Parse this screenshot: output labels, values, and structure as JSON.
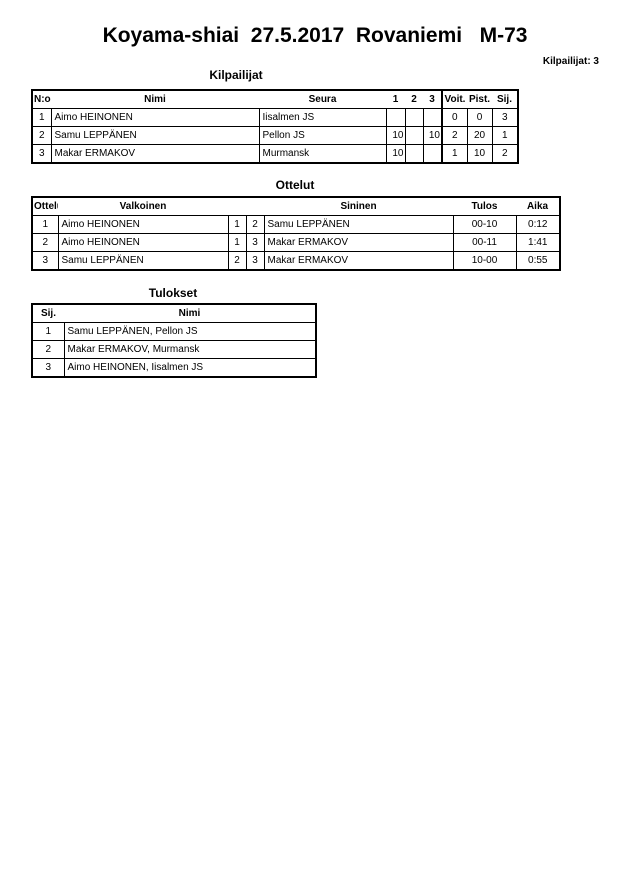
{
  "title": "Koyama-shiai  27.5.2017  Rovaniemi   M-73",
  "competitor_count": "Kilpailijat: 3",
  "competitors": {
    "title": "Kilpailijat",
    "headers": [
      "N:o",
      "Nimi",
      "Seura",
      "1",
      "2",
      "3",
      "Voit.",
      "Pist.",
      "Sij."
    ],
    "rows": [
      [
        "1",
        "Aimo HEINONEN",
        "Iisalmen JS",
        "",
        "",
        "",
        "0",
        "0",
        "3"
      ],
      [
        "2",
        "Samu LEPPÄNEN",
        "Pellon JS",
        "10",
        "",
        "10",
        "2",
        "20",
        "1"
      ],
      [
        "3",
        "Makar ERMAKOV",
        "Murmansk",
        "10",
        "",
        "",
        "1",
        "10",
        "2"
      ]
    ]
  },
  "matches": {
    "title": "Ottelut",
    "headers": [
      "Ottelu",
      "Valkoinen",
      "",
      "",
      "Sininen",
      "Tulos",
      "Aika"
    ],
    "rows": [
      [
        "1",
        "Aimo HEINONEN",
        "1",
        "2",
        "Samu LEPPÄNEN",
        "00-10",
        "0:12"
      ],
      [
        "2",
        "Aimo HEINONEN",
        "1",
        "3",
        "Makar ERMAKOV",
        "00-11",
        "1:41"
      ],
      [
        "3",
        "Samu LEPPÄNEN",
        "2",
        "3",
        "Makar ERMAKOV",
        "10-00",
        "0:55"
      ]
    ]
  },
  "results": {
    "title": "Tulokset",
    "headers": [
      "Sij.",
      "Nimi"
    ],
    "rows": [
      [
        "1",
        "Samu LEPPÄNEN, Pellon JS"
      ],
      [
        "2",
        "Makar ERMAKOV, Murmansk"
      ],
      [
        "3",
        "Aimo HEINONEN, Iisalmen JS"
      ]
    ]
  }
}
